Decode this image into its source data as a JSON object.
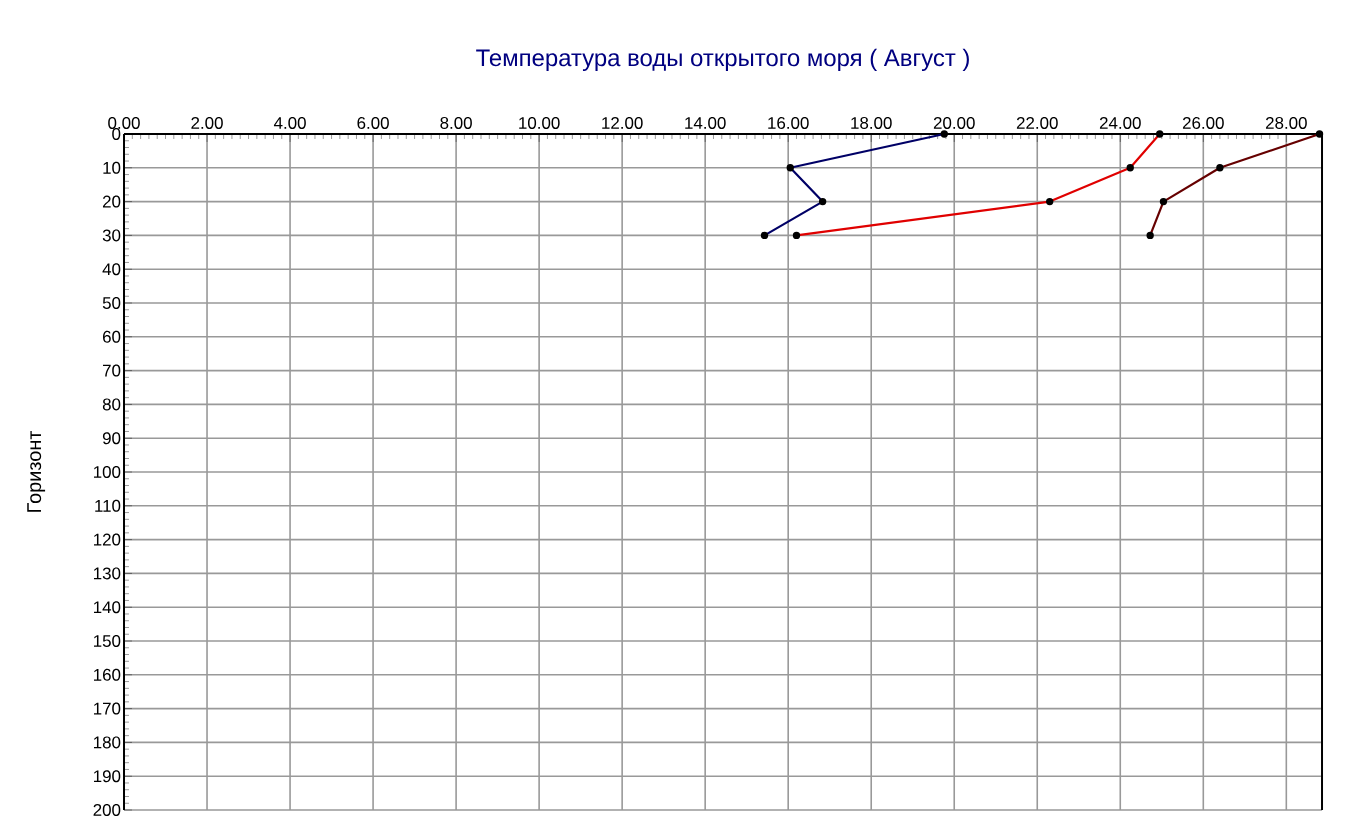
{
  "chart_data": {
    "type": "line",
    "title": "Температура воды открытого моря    ( Август )",
    "ylabel": "Горизонт",
    "xlim": [
      0,
      28.86
    ],
    "ylim": [
      200,
      0
    ],
    "xticks": [
      {
        "value": 0,
        "label": "0.00"
      },
      {
        "value": 2,
        "label": "2.00"
      },
      {
        "value": 4,
        "label": "4.00"
      },
      {
        "value": 6,
        "label": "6.00"
      },
      {
        "value": 8,
        "label": "8.00"
      },
      {
        "value": 10,
        "label": "10.00"
      },
      {
        "value": 12,
        "label": "12.00"
      },
      {
        "value": 14,
        "label": "14.00"
      },
      {
        "value": 16,
        "label": "16.00"
      },
      {
        "value": 18,
        "label": "18.00"
      },
      {
        "value": 20,
        "label": "20.00"
      },
      {
        "value": 22,
        "label": "22.00"
      },
      {
        "value": 24,
        "label": "24.00"
      },
      {
        "value": 26,
        "label": "26.00"
      },
      {
        "value": 28,
        "label": "28.00"
      }
    ],
    "yticks": [
      0,
      10,
      20,
      30,
      40,
      50,
      60,
      70,
      80,
      90,
      100,
      110,
      120,
      130,
      140,
      150,
      160,
      170,
      180,
      190,
      200
    ],
    "grid": true,
    "marker": "circle",
    "line_style": "solid",
    "series": [
      {
        "color": "#000066",
        "x": [
          19.76,
          16.05,
          16.83,
          15.43
        ],
        "values": [
          0,
          10,
          20,
          30
        ]
      },
      {
        "color": "#e00000",
        "x": [
          24.95,
          24.24,
          22.3,
          16.2
        ],
        "values": [
          0,
          10,
          20,
          30
        ]
      },
      {
        "color": "#660000",
        "x": [
          28.8,
          26.4,
          25.04,
          24.72
        ],
        "values": [
          0,
          10,
          20,
          30
        ]
      }
    ]
  }
}
